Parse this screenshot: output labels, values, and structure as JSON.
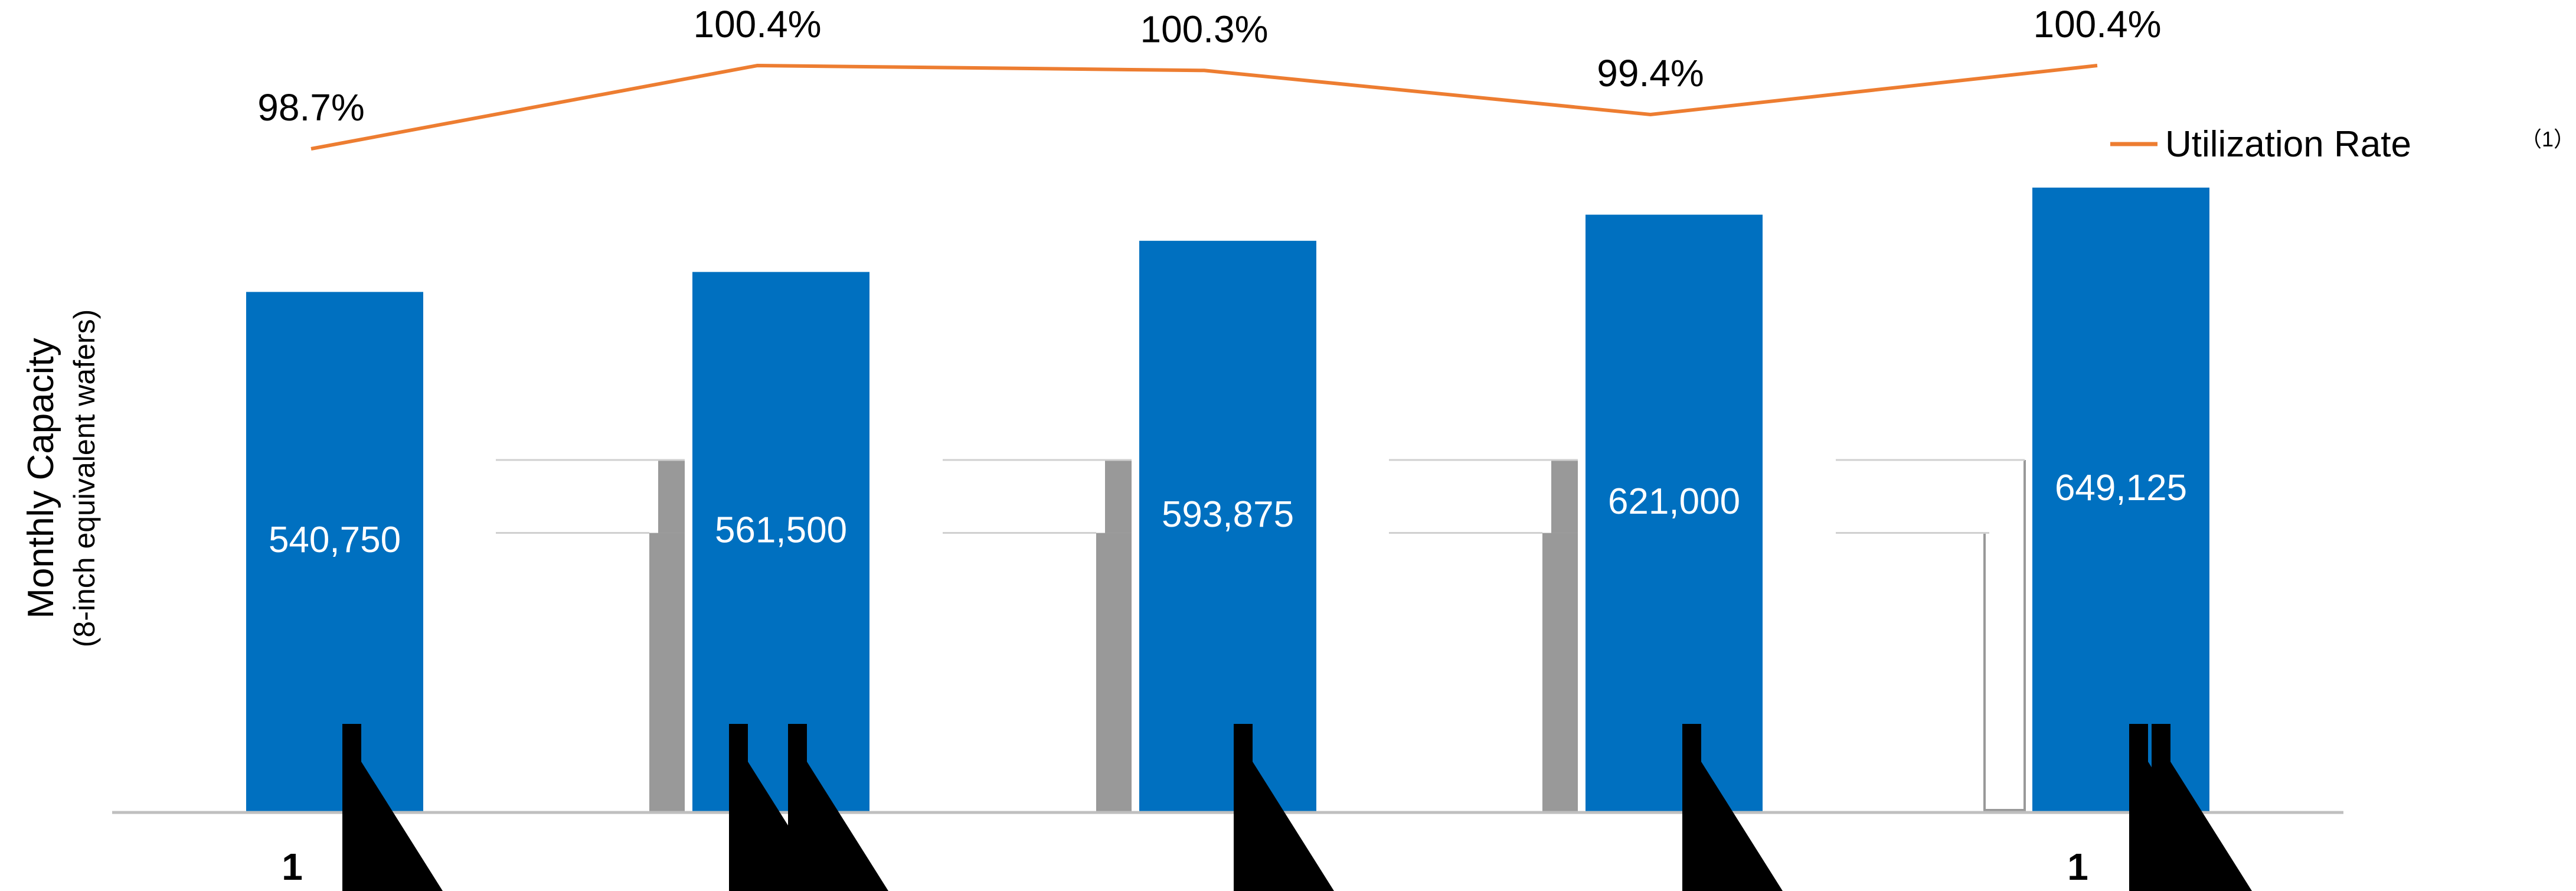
{
  "chart_data": {
    "type": "bar",
    "categories": [
      "",
      "",
      "",
      "",
      ""
    ],
    "series": [
      {
        "type": "bar",
        "values": [
          540750,
          561500,
          593875,
          621000,
          649125
        ]
      },
      {
        "name": "Utilization Rate",
        "type": "line",
        "values": [
          98.7,
          100.4,
          100.3,
          99.4,
          100.4
        ]
      }
    ],
    "bar_labels": [
      "540,750",
      "561,500",
      "593,875",
      "621,000",
      "649,125"
    ],
    "line_labels": [
      "98.7%",
      "100.4%",
      "100.3%",
      "99.4%",
      "100.4%"
    ],
    "ylabel": "Monthly Capacity",
    "ylabel_sub": "(8-inch equivalent wafers)",
    "legend": {
      "label": "Utilization Rate",
      "note": "（1）",
      "position": "top-right"
    },
    "footer_marks": [
      "1",
      "1"
    ],
    "ylim": [
      0,
      660000
    ],
    "grid": false,
    "colors": {
      "bar": "#0070C0",
      "line": "#ED7D31",
      "secondary_bar": "#999999",
      "axis": "#BFBFBF",
      "mark": "#000000"
    }
  }
}
